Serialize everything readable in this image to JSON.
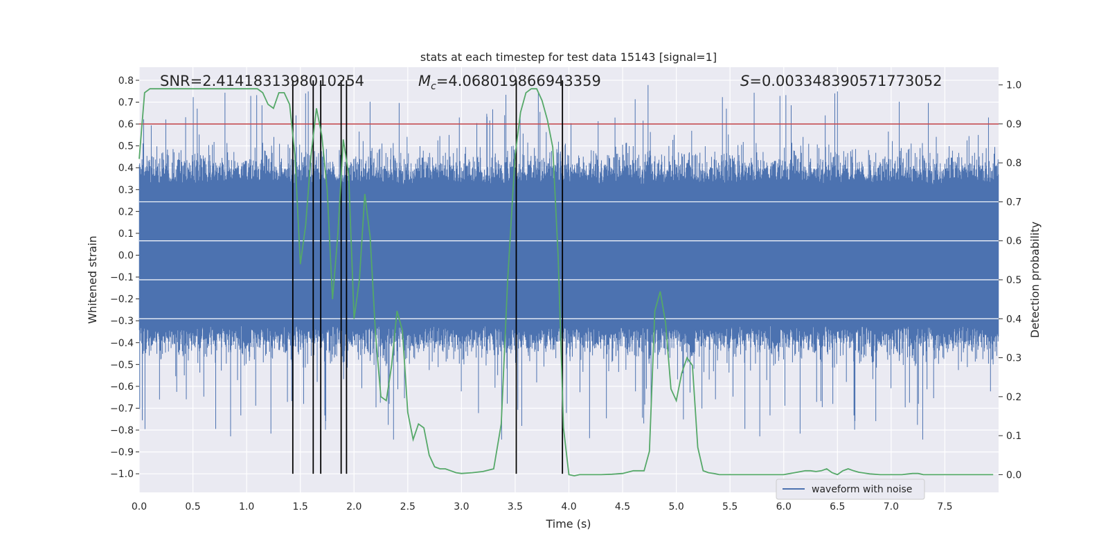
{
  "chart_data": {
    "type": "line",
    "title": "stats at each timestep for test data 15143 [signal=1]",
    "xlabel": "Time (s)",
    "ylabel_left": "Whitened strain",
    "ylabel_right": "Detection probability",
    "xlim": [
      0.0,
      8.0
    ],
    "ylim_left": [
      -1.085,
      0.86
    ],
    "ylim_right": [
      -0.0455,
      1.0455
    ],
    "x_ticks": [
      0.0,
      0.5,
      1.0,
      1.5,
      2.0,
      2.5,
      3.0,
      3.5,
      4.0,
      4.5,
      5.0,
      5.5,
      6.0,
      6.5,
      7.0,
      7.5
    ],
    "x_tick_labels": [
      "0.0",
      "0.5",
      "1.0",
      "1.5",
      "2.0",
      "2.5",
      "3.0",
      "3.5",
      "4.0",
      "4.5",
      "5.0",
      "5.5",
      "6.0",
      "6.5",
      "7.0",
      "7.5"
    ],
    "y_left_ticks": [
      -1.0,
      -0.9,
      -0.8,
      -0.7,
      -0.6,
      -0.5,
      -0.4,
      -0.3,
      -0.2,
      -0.1,
      0.0,
      0.1,
      0.2,
      0.3,
      0.4,
      0.5,
      0.6,
      0.7,
      0.8
    ],
    "y_left_tick_labels": [
      "−1.0",
      "−0.9",
      "−0.8",
      "−0.7",
      "−0.6",
      "−0.5",
      "−0.4",
      "−0.3",
      "−0.2",
      "−0.1",
      "0.0",
      "0.1",
      "0.2",
      "0.3",
      "0.4",
      "0.5",
      "0.6",
      "0.7",
      "0.8"
    ],
    "y_right_ticks": [
      0.0,
      0.1,
      0.2,
      0.3,
      0.4,
      0.5,
      0.6,
      0.7,
      0.8,
      0.9,
      1.0
    ],
    "y_right_tick_labels": [
      "0.0",
      "0.1",
      "0.2",
      "0.3",
      "0.4",
      "0.5",
      "0.6",
      "0.7",
      "0.8",
      "0.9",
      "1.0"
    ],
    "annotations": {
      "snr": "SNR=2.4141831398010254",
      "mc_symbol": "M",
      "mc_subscript": "c",
      "mc_value": "=4.068019866943359",
      "s_symbol": "S",
      "s_value": "=0.003348390571773052"
    },
    "threshold_line": {
      "y_left": 0.6,
      "color": "#c44e52"
    },
    "event_lines_x": [
      1.43,
      1.62,
      1.69,
      1.88,
      1.93,
      3.51,
      3.94
    ],
    "event_lines_bottom_y_left": -1.0,
    "event_lines_top_y_left": 0.8,
    "waveform_envelope": {
      "noise_amplitude_typical": 0.45,
      "peak_max": 0.8,
      "trough_min": -0.85,
      "seed": 15143
    },
    "series": [
      {
        "name": "waveform with noise",
        "axis": "left",
        "color": "#4c72b0"
      },
      {
        "name": "detection probability",
        "axis": "right",
        "color": "#55a868",
        "x": [
          0.0,
          0.05,
          0.1,
          0.15,
          0.2,
          0.3,
          0.5,
          0.7,
          0.9,
          1.0,
          1.1,
          1.15,
          1.2,
          1.25,
          1.3,
          1.35,
          1.4,
          1.45,
          1.5,
          1.55,
          1.6,
          1.65,
          1.7,
          1.75,
          1.8,
          1.85,
          1.9,
          1.95,
          2.0,
          2.05,
          2.1,
          2.15,
          2.2,
          2.25,
          2.3,
          2.35,
          2.4,
          2.45,
          2.5,
          2.55,
          2.6,
          2.65,
          2.7,
          2.75,
          2.8,
          2.85,
          2.9,
          2.95,
          3.0,
          3.1,
          3.2,
          3.3,
          3.37,
          3.43,
          3.5,
          3.55,
          3.6,
          3.65,
          3.7,
          3.75,
          3.8,
          3.85,
          3.9,
          3.95,
          4.0,
          4.05,
          4.1,
          4.2,
          4.3,
          4.4,
          4.5,
          4.6,
          4.65,
          4.7,
          4.75,
          4.8,
          4.85,
          4.9,
          4.95,
          5.0,
          5.05,
          5.1,
          5.15,
          5.2,
          5.25,
          5.3,
          5.35,
          5.4,
          5.5,
          5.6,
          5.7,
          5.8,
          5.9,
          6.0,
          6.1,
          6.2,
          6.25,
          6.3,
          6.35,
          6.4,
          6.45,
          6.5,
          6.55,
          6.6,
          6.65,
          6.7,
          6.75,
          6.8,
          6.9,
          7.0,
          7.1,
          7.2,
          7.25,
          7.3,
          7.35,
          7.4,
          7.5,
          7.6,
          7.7,
          7.8,
          7.9,
          7.95
        ],
        "y": [
          0.81,
          0.98,
          0.99,
          0.99,
          0.99,
          0.99,
          0.99,
          0.99,
          0.99,
          0.99,
          0.99,
          0.98,
          0.95,
          0.94,
          0.98,
          0.98,
          0.95,
          0.82,
          0.54,
          0.64,
          0.82,
          0.94,
          0.87,
          0.73,
          0.45,
          0.62,
          0.86,
          0.77,
          0.4,
          0.5,
          0.72,
          0.61,
          0.36,
          0.2,
          0.19,
          0.28,
          0.42,
          0.37,
          0.16,
          0.09,
          0.13,
          0.12,
          0.05,
          0.02,
          0.015,
          0.015,
          0.01,
          0.005,
          0.003,
          0.005,
          0.008,
          0.015,
          0.13,
          0.5,
          0.82,
          0.93,
          0.98,
          0.99,
          0.99,
          0.96,
          0.91,
          0.84,
          0.56,
          0.12,
          0.0,
          -0.003,
          0.0,
          0.0,
          0.0,
          0.001,
          0.003,
          0.01,
          0.01,
          0.01,
          0.06,
          0.42,
          0.47,
          0.39,
          0.22,
          0.19,
          0.26,
          0.3,
          0.28,
          0.07,
          0.01,
          0.005,
          0.003,
          0.0,
          0.0,
          0.0,
          0.0,
          0.0,
          0.0,
          0.0,
          0.005,
          0.01,
          0.01,
          0.008,
          0.01,
          0.015,
          0.005,
          0.0,
          0.01,
          0.015,
          0.01,
          0.006,
          0.004,
          0.002,
          0.0,
          0.0,
          0.0,
          0.003,
          0.003,
          0.0,
          0.0,
          0.0,
          0.0,
          0.0,
          0.0,
          0.0,
          0.0,
          0.0
        ]
      }
    ],
    "legend": {
      "position": "lower-right",
      "entries": [
        "waveform with noise"
      ]
    },
    "grid": true,
    "colors": {
      "plot_background": "#eaeaf2",
      "grid": "#ffffff",
      "event_line": "#000000"
    }
  }
}
